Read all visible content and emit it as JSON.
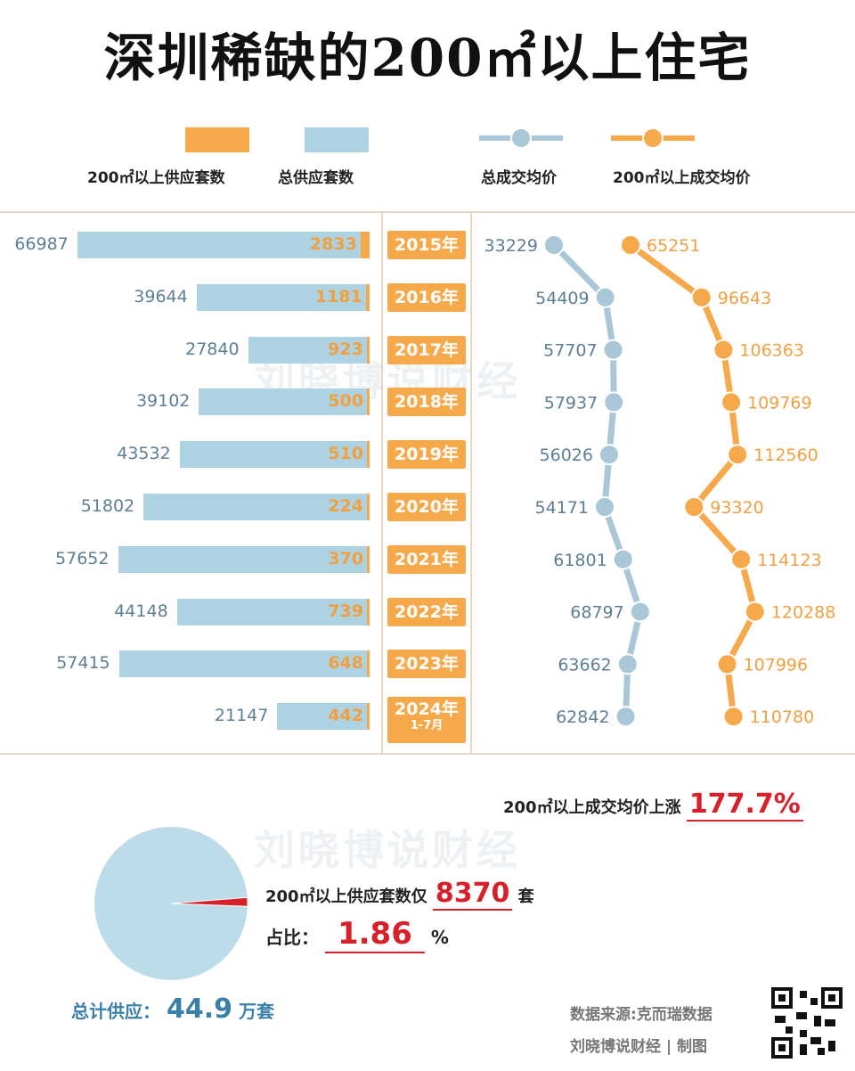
{
  "title": "深圳稀缺的200㎡以上住宅",
  "legend": {
    "big_supply": "200㎡以上供应套数",
    "total_supply": "总供应套数",
    "total_price": "总成交均价",
    "big_price": "200㎡以上成交均价"
  },
  "colors": {
    "orange": "#f5a94a",
    "blue": "#add3e3",
    "blue_line": "#a9c7d6",
    "red": "#d8202a"
  },
  "chart_data": {
    "type": "bar",
    "categories": [
      "2015年",
      "2016年",
      "2017年",
      "2018年",
      "2019年",
      "2020年",
      "2021年",
      "2022年",
      "2023年",
      "2024年"
    ],
    "category_sub": [
      "",
      "",
      "",
      "",
      "",
      "",
      "",
      "",
      "",
      "1-7月"
    ],
    "series": [
      {
        "name": "总供应套数",
        "values": [
          66987,
          39644,
          27840,
          39102,
          43532,
          51802,
          57652,
          44148,
          57415,
          21147
        ]
      },
      {
        "name": "200㎡以上供应套数",
        "values": [
          2833,
          1181,
          923,
          500,
          510,
          224,
          370,
          739,
          648,
          442
        ]
      },
      {
        "name": "总成交均价",
        "values": [
          33229,
          54409,
          57707,
          57937,
          56026,
          54171,
          61801,
          68797,
          63662,
          62842
        ]
      },
      {
        "name": "200㎡以上成交均价",
        "values": [
          65251,
          96643,
          106363,
          109769,
          112560,
          93320,
          114123,
          120288,
          107996,
          110780
        ]
      }
    ]
  },
  "summary": {
    "rise_label": "200㎡以上成交均价上涨",
    "rise_value": "177.7%",
    "big_supply_label": "200㎡以上供应套数仅",
    "big_supply_value": "8370",
    "big_supply_unit": "套",
    "ratio_label": "占比：",
    "ratio_value": "1.86",
    "ratio_unit": "%",
    "ratio_fraction": 0.0186,
    "total_label": "总计供应：",
    "total_value": "44.9",
    "total_unit": "万套"
  },
  "source": "数据来源:克而瑞数据",
  "credit": "刘晓博说财经 | 制图",
  "watermark": "刘晓博说财经"
}
